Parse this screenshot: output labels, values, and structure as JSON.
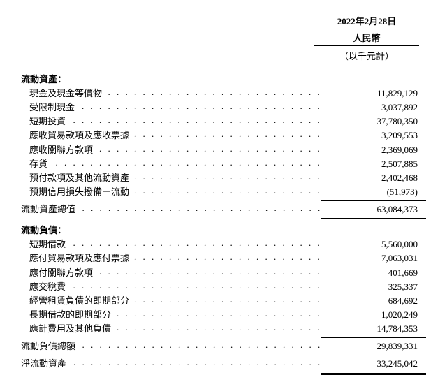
{
  "header": {
    "date": "2022年2月28日",
    "currency": "人民幣",
    "unit": "（以千元計）"
  },
  "sections": {
    "current_assets": {
      "title": "流動資產：",
      "rows": [
        {
          "label": "現金及現金等價物",
          "value": "11,829,129"
        },
        {
          "label": "受限制現金",
          "value": "3,037,892"
        },
        {
          "label": "短期投資",
          "value": "37,780,350"
        },
        {
          "label": "應收貿易款項及應收票據",
          "value": "3,209,553"
        },
        {
          "label": "應收關聯方款項",
          "value": "2,369,069"
        },
        {
          "label": "存貨",
          "value": "2,507,885"
        },
        {
          "label": "預付款項及其他流動資產",
          "value": "2,402,468"
        },
        {
          "label": "預期信用損失撥備－流動",
          "value": "(51,973)"
        }
      ],
      "total": {
        "label": "流動資產總值",
        "value": "63,084,373"
      }
    },
    "current_liabilities": {
      "title": "流動負債：",
      "rows": [
        {
          "label": "短期借款",
          "value": "5,560,000"
        },
        {
          "label": "應付貿易款項及應付票據",
          "value": "7,063,031"
        },
        {
          "label": "應付關聯方款項",
          "value": "401,669"
        },
        {
          "label": "應交稅費",
          "value": "325,337"
        },
        {
          "label": "經營租賃負債的即期部分",
          "value": "684,692"
        },
        {
          "label": "長期借款的即期部分",
          "value": "1,020,249"
        },
        {
          "label": "應計費用及其他負債",
          "value": "14,784,353"
        }
      ],
      "total": {
        "label": "流動負債總額",
        "value": "29,839,331"
      }
    },
    "net": {
      "label": "淨流動資產",
      "value": "33,245,042"
    }
  }
}
